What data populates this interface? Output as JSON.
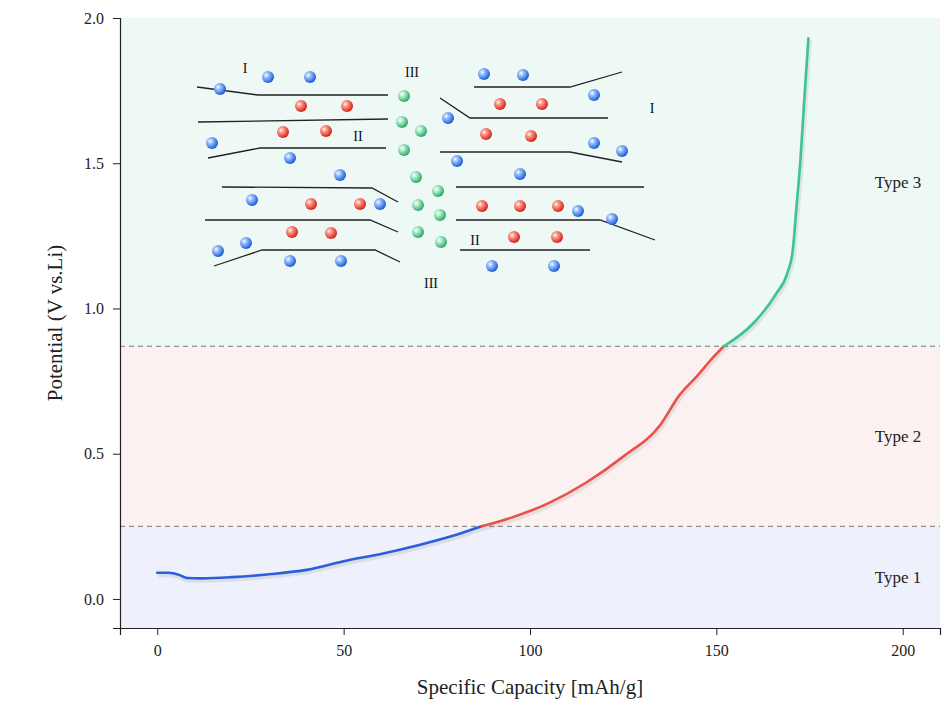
{
  "chart_data": {
    "type": "line",
    "x_label": "Specific Capacity [mAh/g]",
    "y_label": "Potential (V vs.Li)",
    "xlim": [
      -10,
      210
    ],
    "ylim": [
      -0.1,
      2.0
    ],
    "xticks": [
      0,
      50,
      100,
      150,
      200
    ],
    "yticks": [
      {
        "value": 0,
        "label": "0.0"
      },
      0.5,
      {
        "value": 1,
        "label": "1.0"
      },
      1.5,
      {
        "value": 2,
        "label": "2.0"
      }
    ],
    "series": [
      {
        "color": "#2b5fd9",
        "x": [
          0,
          3,
          6,
          8,
          12,
          20,
          30,
          40,
          50,
          60,
          70,
          80,
          87
        ],
        "values": [
          0.09,
          0.09,
          0.082,
          0.072,
          0.071,
          0.075,
          0.085,
          0.1,
          0.13,
          0.155,
          0.185,
          0.22,
          0.25
        ]
      },
      {
        "color": "#e8524a",
        "x": [
          87,
          95,
          105,
          115,
          125,
          135,
          140,
          145,
          149,
          152
        ],
        "values": [
          0.25,
          0.28,
          0.33,
          0.4,
          0.49,
          0.6,
          0.7,
          0.77,
          0.83,
          0.87
        ]
      },
      {
        "color": "#3cc39a",
        "x": [
          152,
          160,
          166,
          169,
          170.5,
          171.5,
          172.5,
          173.5,
          174.7
        ],
        "values": [
          0.87,
          0.95,
          1.05,
          1.12,
          1.2,
          1.35,
          1.5,
          1.7,
          1.93
        ]
      }
    ],
    "regions": [
      {
        "label": "Type 1",
        "range": [
          -0.1,
          0.25
        ],
        "color": "#eef0fb"
      },
      {
        "label": "Type 2",
        "range": [
          0.25,
          0.87
        ],
        "color": "#fcf1f1"
      },
      {
        "label": "Type 3",
        "range": [
          0.87,
          2.0
        ],
        "color": "#eef8f4"
      }
    ],
    "annotations": [
      "I",
      "III",
      "I",
      "II",
      "II",
      "III"
    ]
  }
}
